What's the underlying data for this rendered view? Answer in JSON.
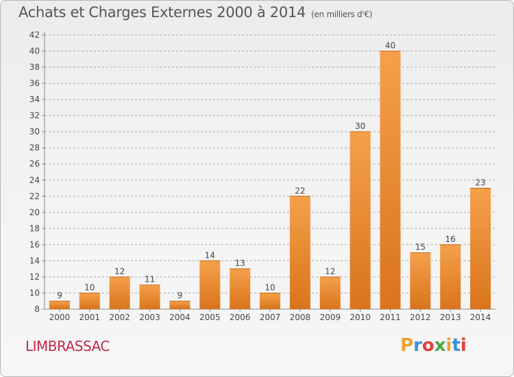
{
  "title": "Achats et Charges Externes 2000 à 2014",
  "unit": "(en milliers d'€)",
  "commune": "LIMBRASSAC",
  "logo": {
    "letters": [
      "P",
      "r",
      "o",
      "x",
      "i",
      "t",
      "i"
    ],
    "colors": [
      "#f0a030",
      "#3a8fd8",
      "#e04040",
      "#49a83e",
      "#f0a030",
      "#3a8fd8",
      "#e04040"
    ]
  },
  "colors": {
    "bar_light": "#f5a04a",
    "bar_dark": "#d9741c",
    "axis": "#888888",
    "grid": "#aaaaaa",
    "commune": "#c0284a",
    "title": "#555555"
  },
  "chart_data": {
    "type": "bar",
    "title": "Achats et Charges Externes 2000 à 2014",
    "subtitle": "(en milliers d'€)",
    "xlabel": "",
    "ylabel": "",
    "ylim": [
      8,
      42
    ],
    "ytick_step": 2,
    "grid": "horizontal dashed",
    "categories": [
      "2000",
      "2001",
      "2002",
      "2003",
      "2004",
      "2005",
      "2006",
      "2007",
      "2008",
      "2009",
      "2010",
      "2011",
      "2012",
      "2013",
      "2014"
    ],
    "values": [
      9,
      10,
      12,
      11,
      9,
      14,
      13,
      10,
      22,
      12,
      30,
      40,
      15,
      16,
      23
    ]
  }
}
